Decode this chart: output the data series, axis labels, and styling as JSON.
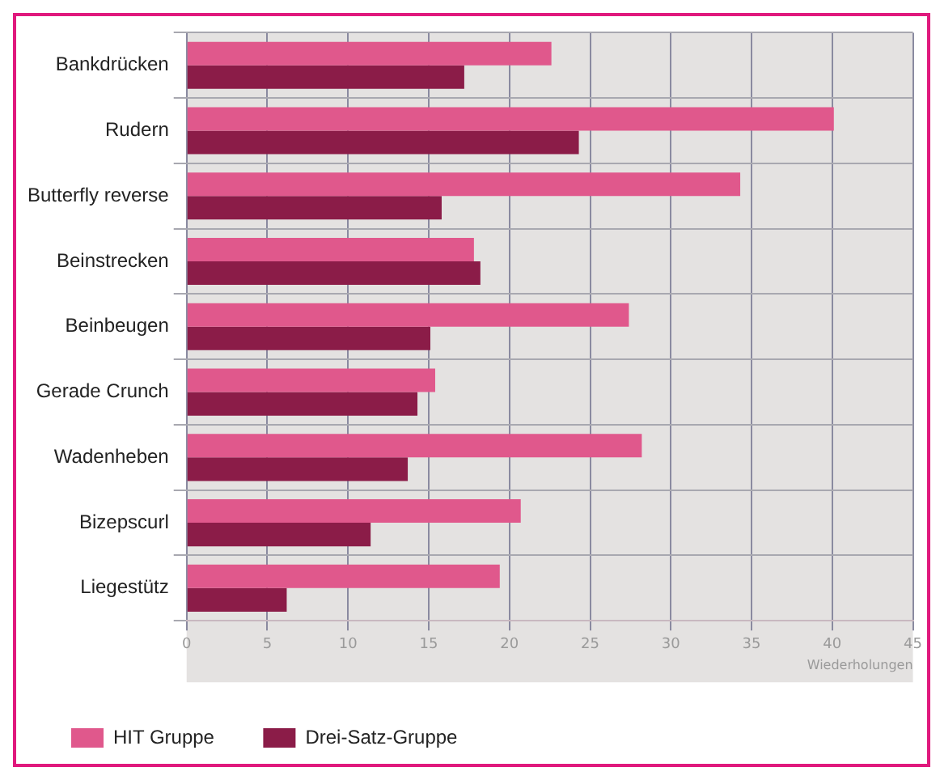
{
  "chart_data": {
    "type": "bar",
    "orientation": "horizontal",
    "xlabel": "Wiederholungen",
    "categories": [
      "Bankdrücken",
      "Rudern",
      "Butterfly reverse",
      "Beinstrecken",
      "Beinbeugen",
      "Gerade Crunch",
      "Wadenheben",
      "Bizepscurl",
      "Liegestütz"
    ],
    "series": [
      {
        "name": "HIT Gruppe",
        "color": "#e0588c",
        "values": [
          22.6,
          40.1,
          34.3,
          17.8,
          27.4,
          15.4,
          28.2,
          20.7,
          19.4
        ]
      },
      {
        "name": "Drei-Satz-Gruppe",
        "color": "#8b1c48",
        "values": [
          17.2,
          24.3,
          15.8,
          18.2,
          15.1,
          14.3,
          13.7,
          11.4,
          6.2
        ]
      }
    ],
    "xlim": [
      0,
      45
    ],
    "xticks": [
      0,
      5,
      10,
      15,
      20,
      25,
      30,
      35,
      40,
      45
    ],
    "grid": true,
    "legend": "bottom"
  }
}
